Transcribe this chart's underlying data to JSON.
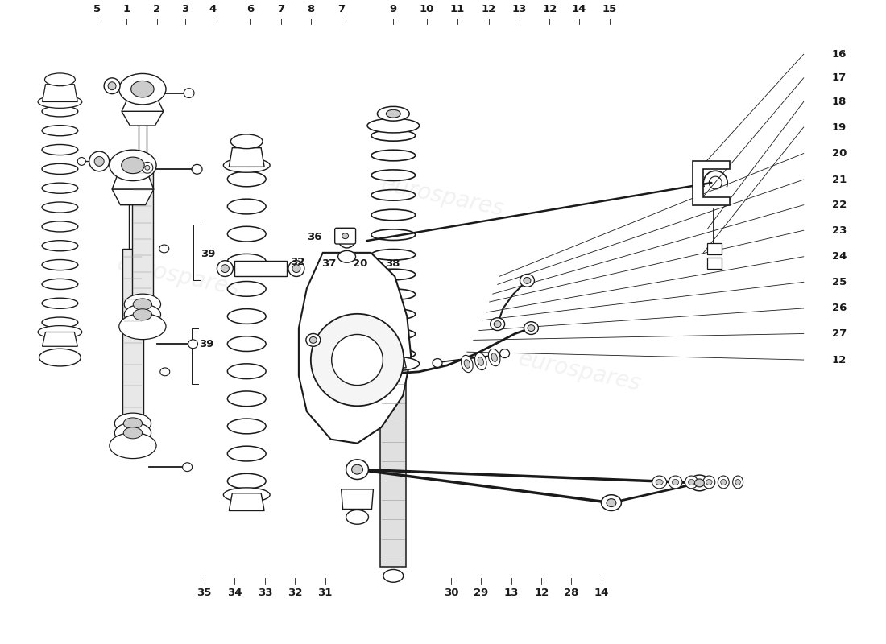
{
  "bg_color": "#ffffff",
  "line_color": "#1a1a1a",
  "watermark_color": "#cccccc",
  "top_labels": [
    [
      "5",
      0.118
    ],
    [
      "1",
      0.155
    ],
    [
      "2",
      0.193
    ],
    [
      "3",
      0.228
    ],
    [
      "4",
      0.263
    ],
    [
      "6",
      0.31
    ],
    [
      "7",
      0.348
    ],
    [
      "8",
      0.385
    ],
    [
      "7",
      0.423
    ],
    [
      "9",
      0.488
    ],
    [
      "10",
      0.53
    ],
    [
      "11",
      0.568
    ],
    [
      "12",
      0.607
    ],
    [
      "13",
      0.645
    ],
    [
      "12",
      0.683
    ],
    [
      "14",
      0.72
    ],
    [
      "15",
      0.758
    ]
  ],
  "right_labels": [
    [
      "16",
      0.74
    ],
    [
      "17",
      0.71
    ],
    [
      "18",
      0.68
    ],
    [
      "19",
      0.648
    ],
    [
      "20",
      0.615
    ],
    [
      "21",
      0.582
    ],
    [
      "22",
      0.55
    ],
    [
      "23",
      0.518
    ],
    [
      "24",
      0.485
    ],
    [
      "25",
      0.453
    ],
    [
      "26",
      0.42
    ],
    [
      "27",
      0.388
    ],
    [
      "12",
      0.355
    ]
  ],
  "bottom_labels": [
    [
      "35",
      0.252
    ],
    [
      "34",
      0.29
    ],
    [
      "33",
      0.328
    ],
    [
      "32",
      0.365
    ],
    [
      "31",
      0.403
    ],
    [
      "30",
      0.56
    ],
    [
      "29",
      0.597
    ],
    [
      "13",
      0.635
    ],
    [
      "12",
      0.673
    ],
    [
      "28",
      0.71
    ],
    [
      "14",
      0.748
    ]
  ]
}
